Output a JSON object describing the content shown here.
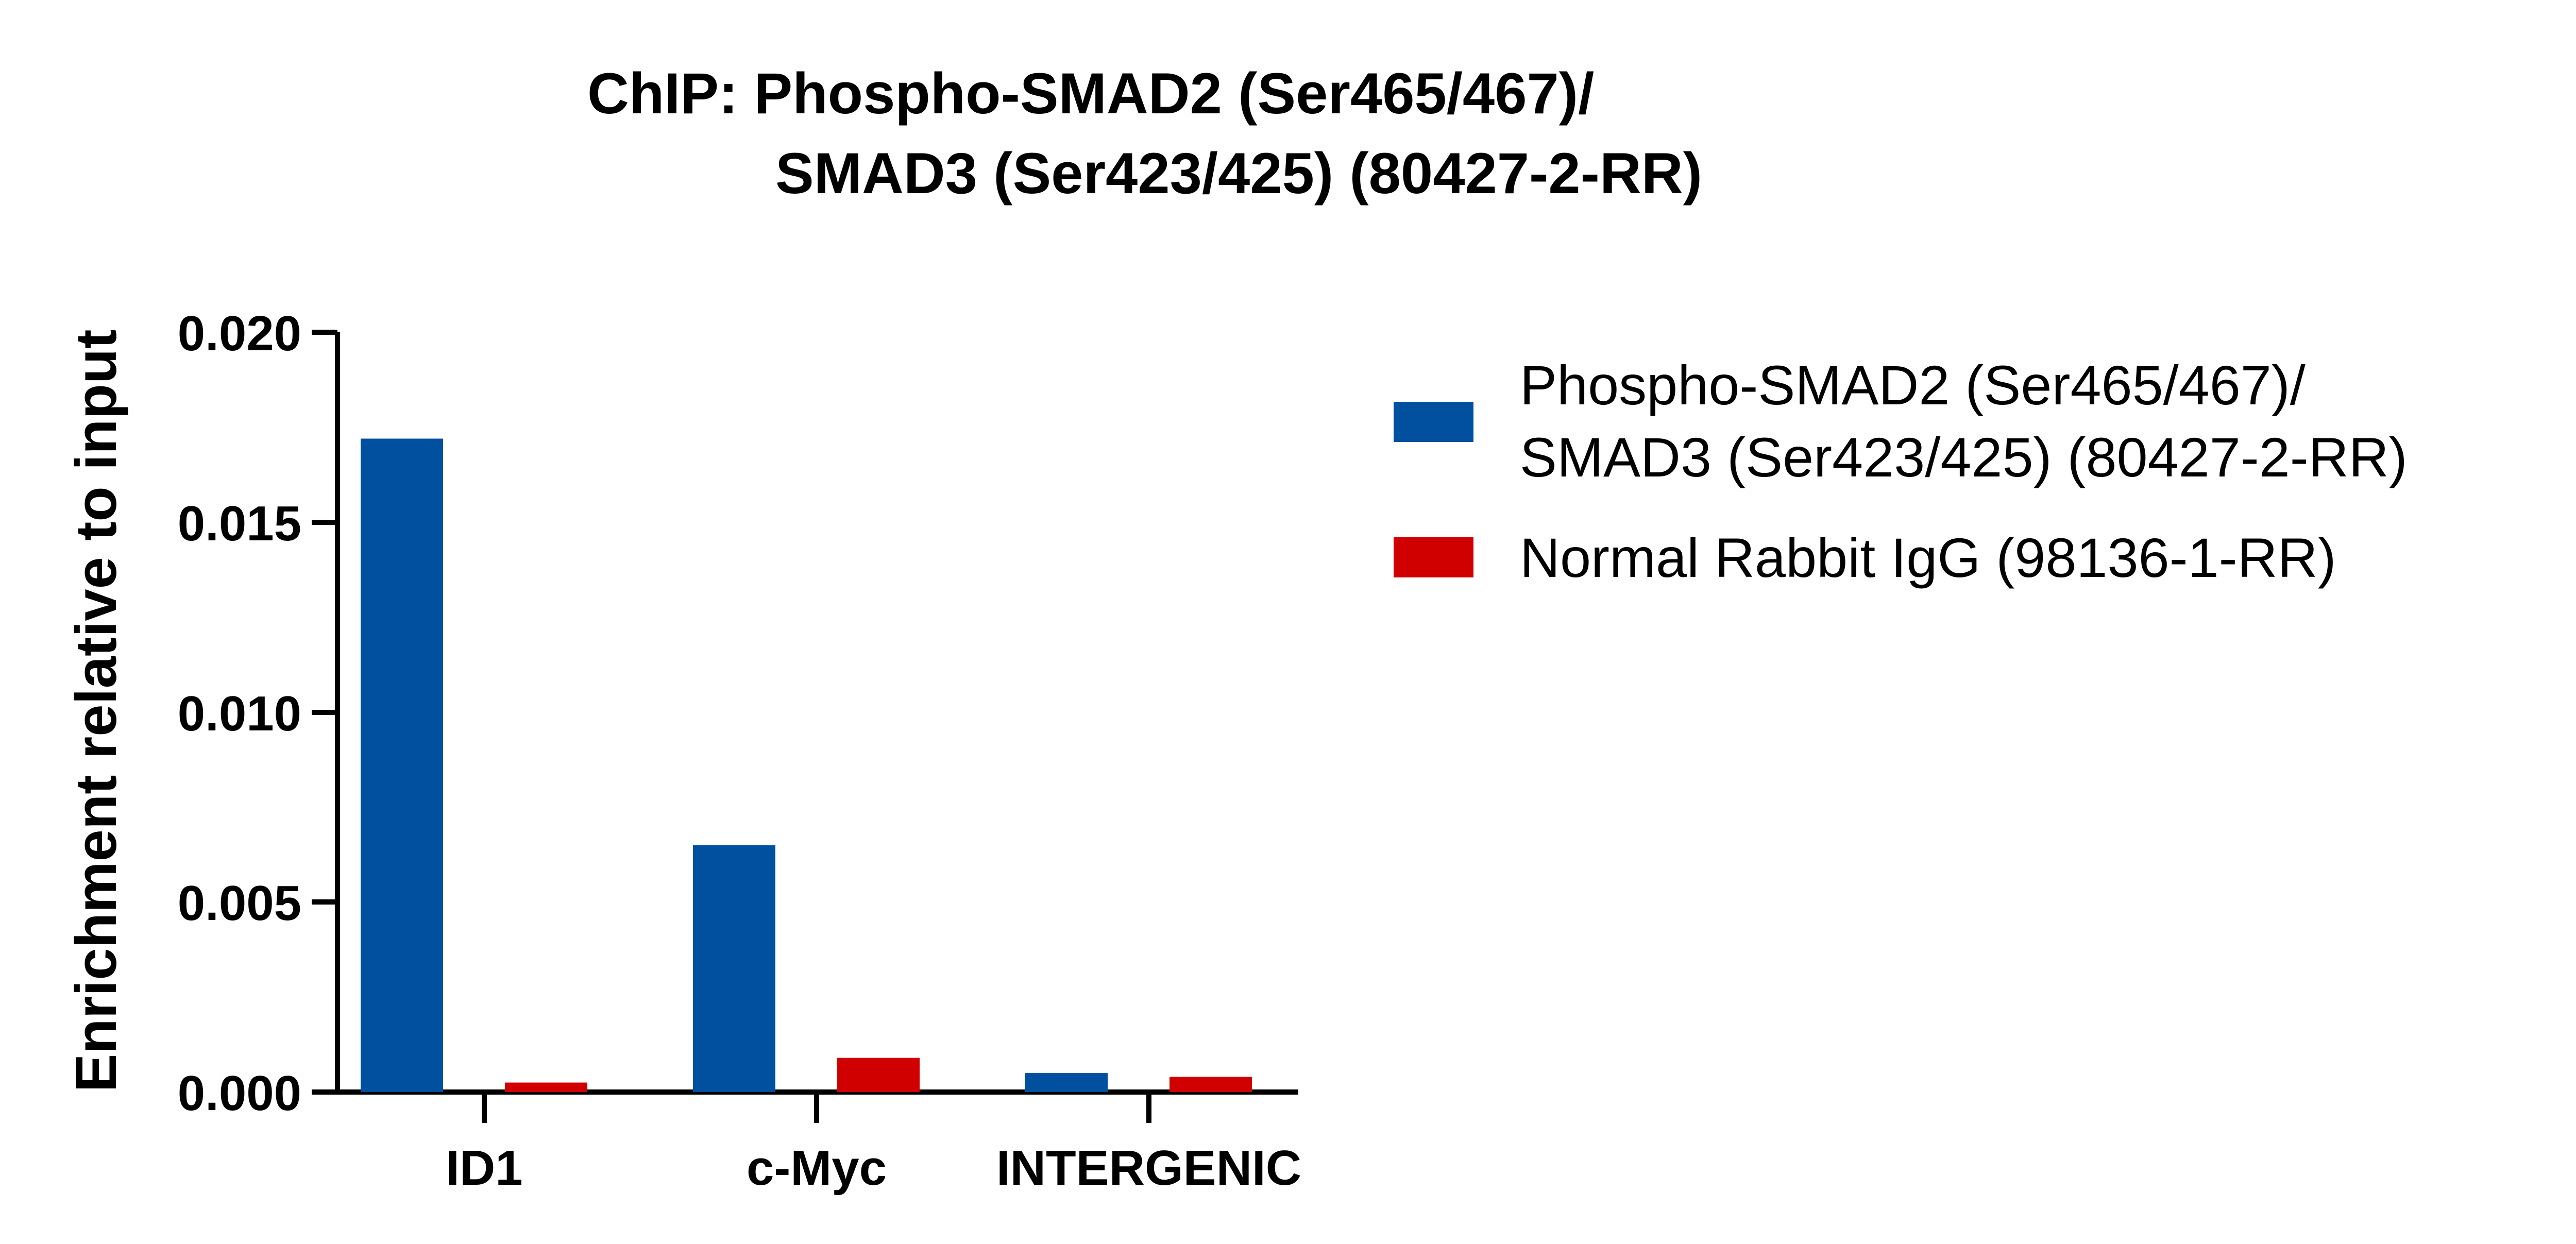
{
  "chart_data": {
    "type": "bar",
    "title_lines": [
      "ChIP: Phospho-SMAD2 (Ser465/467)/",
      "SMAD3 (Ser423/425) (80427-2-RR)"
    ],
    "xlabel": "",
    "ylabel": "Enrichment relative to input",
    "ylim": [
      0,
      0.02
    ],
    "yticks": [
      "0.000",
      "0.005",
      "0.010",
      "0.015",
      "0.020"
    ],
    "categories": [
      "ID1",
      "c-Myc",
      "INTERGENIC"
    ],
    "series": [
      {
        "name_lines": [
          "Phospho-SMAD2 (Ser465/467)/",
          "SMAD3 (Ser423/425) (80427-2-RR)"
        ],
        "color": "#0050a0",
        "values": [
          0.0172,
          0.0065,
          0.0005
        ]
      },
      {
        "name_lines": [
          "Normal Rabbit IgG (98136-1-RR)"
        ],
        "color": "#d00000",
        "values": [
          0.00025,
          0.0009,
          0.0004
        ]
      }
    ],
    "legend_position": "right",
    "grid": false
  }
}
